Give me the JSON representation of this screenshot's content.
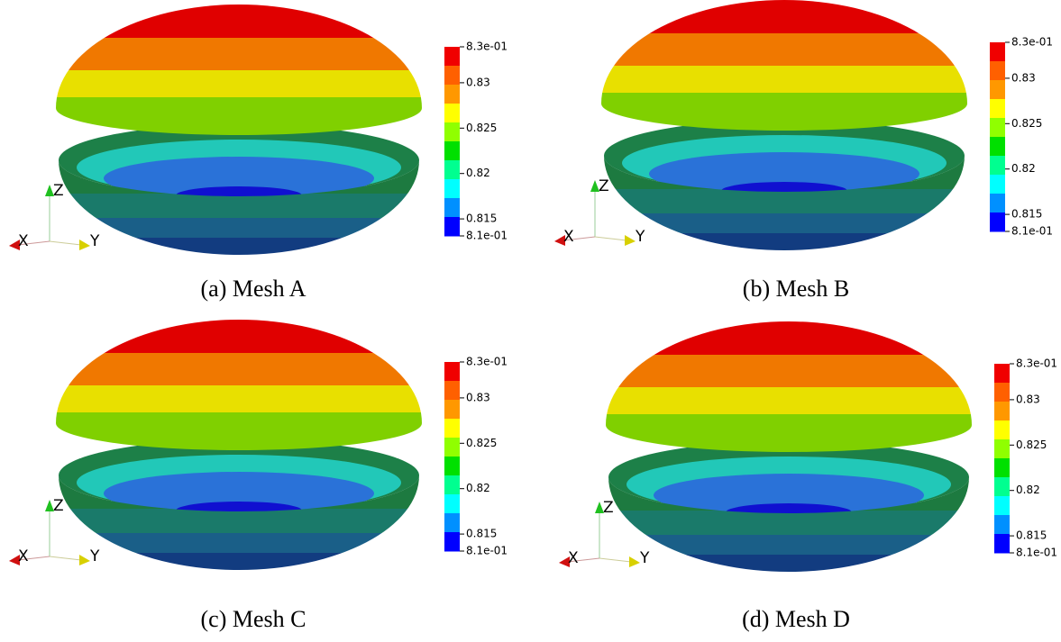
{
  "panels": [
    {
      "caption": "(a) Mesh A",
      "colorbar_labels": [
        "8.3e-01",
        "0.83",
        "0.825",
        "0.82",
        "0.815",
        "8.1e-01"
      ],
      "axes": {
        "x": "X",
        "y": "Y",
        "z": "Z"
      }
    },
    {
      "caption": "(b) Mesh B",
      "colorbar_labels": [
        "8.3e-01",
        "0.83",
        "0.825",
        "0.82",
        "0.815",
        "8.1e-01"
      ],
      "axes": {
        "x": "X",
        "y": "Y",
        "z": "Z"
      }
    },
    {
      "caption": "(c) Mesh C",
      "colorbar_labels": [
        "8.3e-01",
        "0.83",
        "0.825",
        "0.82",
        "0.815",
        "8.1e-01"
      ],
      "axes": {
        "x": "X",
        "y": "Y",
        "z": "Z"
      }
    },
    {
      "caption": "(d) Mesh D",
      "colorbar_labels": [
        "8.3e-01",
        "0.83",
        "0.825",
        "0.82",
        "0.815",
        "8.1e-01"
      ],
      "axes": {
        "x": "X",
        "y": "Y",
        "z": "Z"
      }
    }
  ]
}
